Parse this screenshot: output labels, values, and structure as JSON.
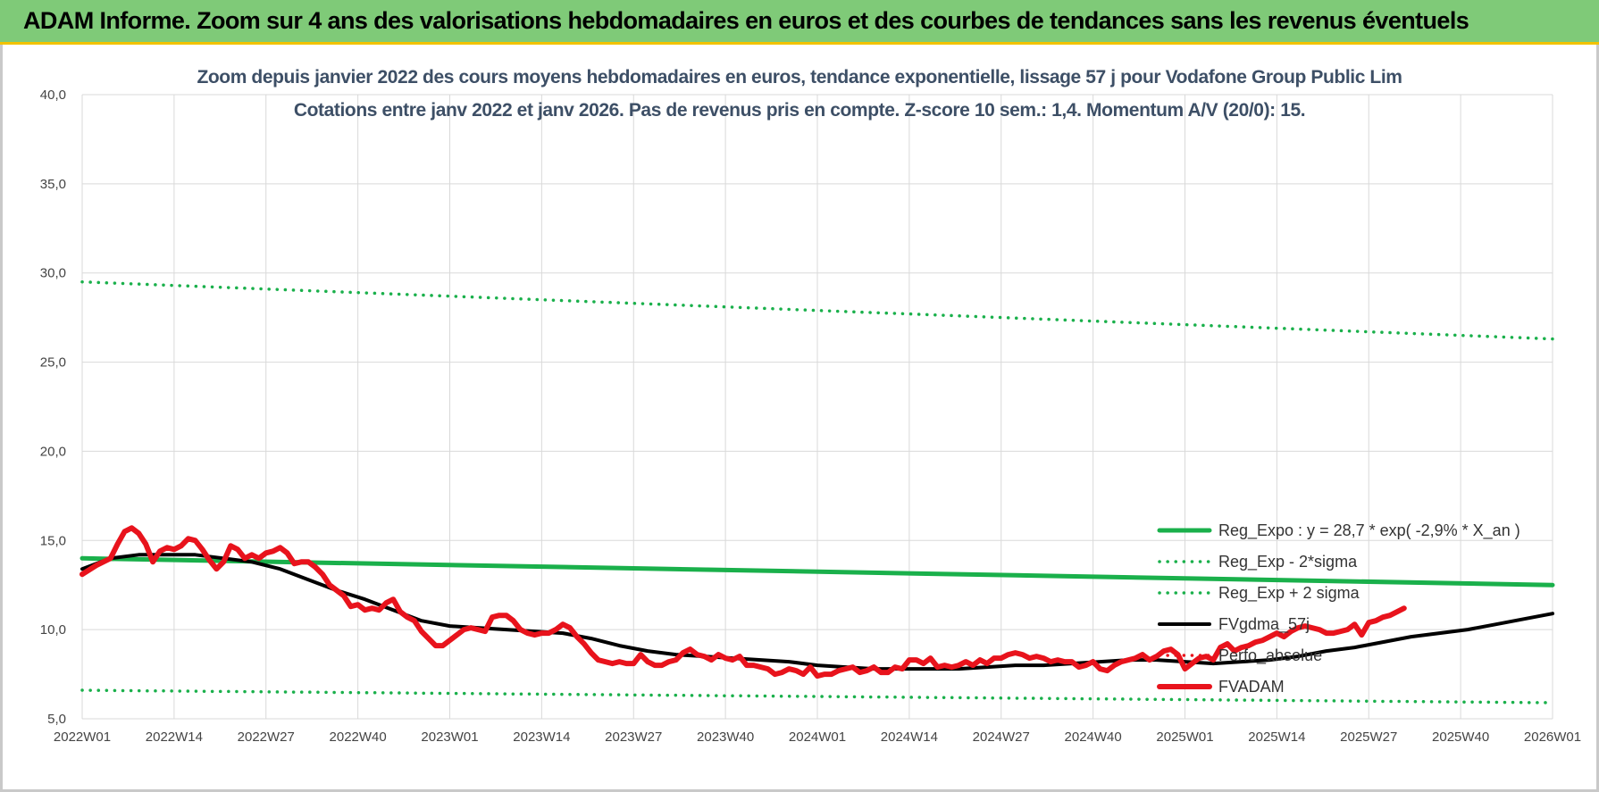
{
  "banner": {
    "title": "ADAM Informe. Zoom sur 4 ans des valorisations hebdomadaires en euros et des courbes de tendances sans les revenus éventuels",
    "color": "#7fca78"
  },
  "chart_data": {
    "type": "line",
    "title": "Zoom depuis janvier 2022 des cours moyens hebdomadaires en euros, tendance exponentielle, lissage 57 j pour Vodafone Group Public Lim",
    "subtitle": "Cotations entre janv 2022 et janv 2026. Pas de revenus pris en compte. Z-score 10 sem.: 1,4. Momentum A/V (20/0): 15.",
    "xlabel": "",
    "ylabel": "",
    "x_ticks": [
      "2022W01",
      "2022W14",
      "2022W27",
      "2022W40",
      "2023W01",
      "2023W14",
      "2023W27",
      "2023W40",
      "2024W01",
      "2024W14",
      "2024W27",
      "2024W40",
      "2025W01",
      "2025W14",
      "2025W27",
      "2025W40",
      "2026W01"
    ],
    "y_ticks": [
      "5,0",
      "10,0",
      "15,0",
      "20,0",
      "25,0",
      "30,0",
      "35,0",
      "40,0"
    ],
    "ylim": [
      5,
      40
    ],
    "grid": true,
    "legend_position": "bottom-right",
    "series": [
      {
        "name": "Reg_Expo : y = 28,7 * exp( -2,9% *  X_an )",
        "style": "solid",
        "color": "#1ab04b",
        "width": 5,
        "points": [
          [
            0,
            14.0
          ],
          [
            208,
            12.5
          ]
        ]
      },
      {
        "name": "Reg_Exp - 2*sigma",
        "style": "dotted",
        "color": "#1ab04b",
        "width": 3.5,
        "points": [
          [
            0,
            6.6
          ],
          [
            208,
            5.9
          ]
        ]
      },
      {
        "name": "Reg_Exp + 2 sigma",
        "style": "dotted",
        "color": "#1ab04b",
        "width": 3.5,
        "points": [
          [
            0,
            29.5
          ],
          [
            208,
            26.3
          ]
        ]
      },
      {
        "name": "FVgdma_57j",
        "style": "solid",
        "color": "#000000",
        "width": 4,
        "points": [
          [
            0,
            13.4
          ],
          [
            4,
            14.0
          ],
          [
            8,
            14.2
          ],
          [
            12,
            14.2
          ],
          [
            16,
            14.2
          ],
          [
            20,
            14.0
          ],
          [
            24,
            13.8
          ],
          [
            28,
            13.4
          ],
          [
            32,
            12.8
          ],
          [
            36,
            12.2
          ],
          [
            40,
            11.7
          ],
          [
            44,
            11.1
          ],
          [
            48,
            10.5
          ],
          [
            52,
            10.2
          ],
          [
            56,
            10.1
          ],
          [
            60,
            10.0
          ],
          [
            64,
            9.9
          ],
          [
            68,
            9.8
          ],
          [
            72,
            9.5
          ],
          [
            76,
            9.1
          ],
          [
            80,
            8.8
          ],
          [
            84,
            8.6
          ],
          [
            88,
            8.5
          ],
          [
            92,
            8.4
          ],
          [
            96,
            8.3
          ],
          [
            100,
            8.2
          ],
          [
            104,
            8.0
          ],
          [
            108,
            7.9
          ],
          [
            112,
            7.8
          ],
          [
            116,
            7.8
          ],
          [
            120,
            7.8
          ],
          [
            124,
            7.8
          ],
          [
            128,
            7.9
          ],
          [
            132,
            8.0
          ],
          [
            136,
            8.0
          ],
          [
            140,
            8.1
          ],
          [
            144,
            8.2
          ],
          [
            148,
            8.3
          ],
          [
            152,
            8.3
          ],
          [
            156,
            8.2
          ],
          [
            160,
            8.1
          ],
          [
            164,
            8.2
          ],
          [
            168,
            8.3
          ],
          [
            172,
            8.5
          ],
          [
            176,
            8.8
          ],
          [
            180,
            9.0
          ],
          [
            184,
            9.3
          ],
          [
            188,
            9.6
          ],
          [
            192,
            9.8
          ],
          [
            196,
            10.0
          ],
          [
            200,
            10.3
          ],
          [
            204,
            10.6
          ],
          [
            208,
            10.9
          ]
        ]
      },
      {
        "name": "Perfo_absolue",
        "style": "dotted",
        "color": "#e8131c",
        "width": 3.5,
        "points": []
      },
      {
        "name": "FVADAM",
        "style": "solid",
        "color": "#e8131c",
        "width": 6,
        "points": [
          [
            0,
            13.1
          ],
          [
            2,
            13.6
          ],
          [
            4,
            14.0
          ],
          [
            5,
            14.8
          ],
          [
            6,
            15.5
          ],
          [
            7,
            15.7
          ],
          [
            8,
            15.4
          ],
          [
            9,
            14.8
          ],
          [
            10,
            13.8
          ],
          [
            11,
            14.4
          ],
          [
            12,
            14.6
          ],
          [
            13,
            14.5
          ],
          [
            14,
            14.7
          ],
          [
            15,
            15.1
          ],
          [
            16,
            15.0
          ],
          [
            17,
            14.5
          ],
          [
            18,
            13.9
          ],
          [
            19,
            13.4
          ],
          [
            20,
            13.8
          ],
          [
            21,
            14.7
          ],
          [
            22,
            14.5
          ],
          [
            23,
            14.0
          ],
          [
            24,
            14.2
          ],
          [
            25,
            14.0
          ],
          [
            26,
            14.3
          ],
          [
            27,
            14.4
          ],
          [
            28,
            14.6
          ],
          [
            29,
            14.3
          ],
          [
            30,
            13.7
          ],
          [
            31,
            13.8
          ],
          [
            32,
            13.8
          ],
          [
            33,
            13.5
          ],
          [
            34,
            13.1
          ],
          [
            35,
            12.5
          ],
          [
            36,
            12.2
          ],
          [
            37,
            11.9
          ],
          [
            38,
            11.3
          ],
          [
            39,
            11.4
          ],
          [
            40,
            11.1
          ],
          [
            41,
            11.2
          ],
          [
            42,
            11.1
          ],
          [
            43,
            11.5
          ],
          [
            44,
            11.7
          ],
          [
            45,
            11.0
          ],
          [
            46,
            10.7
          ],
          [
            47,
            10.5
          ],
          [
            48,
            9.9
          ],
          [
            49,
            9.5
          ],
          [
            50,
            9.1
          ],
          [
            51,
            9.1
          ],
          [
            52,
            9.4
          ],
          [
            53,
            9.7
          ],
          [
            54,
            10.0
          ],
          [
            55,
            10.1
          ],
          [
            56,
            10.0
          ],
          [
            57,
            9.9
          ],
          [
            58,
            10.7
          ],
          [
            59,
            10.8
          ],
          [
            60,
            10.8
          ],
          [
            61,
            10.5
          ],
          [
            62,
            10.0
          ],
          [
            63,
            9.8
          ],
          [
            64,
            9.7
          ],
          [
            65,
            9.8
          ],
          [
            66,
            9.8
          ],
          [
            67,
            10.0
          ],
          [
            68,
            10.3
          ],
          [
            69,
            10.1
          ],
          [
            70,
            9.6
          ],
          [
            71,
            9.2
          ],
          [
            72,
            8.7
          ],
          [
            73,
            8.3
          ],
          [
            74,
            8.2
          ],
          [
            75,
            8.1
          ],
          [
            76,
            8.2
          ],
          [
            77,
            8.1
          ],
          [
            78,
            8.1
          ],
          [
            79,
            8.6
          ],
          [
            80,
            8.2
          ],
          [
            81,
            8.0
          ],
          [
            82,
            8.0
          ],
          [
            83,
            8.2
          ],
          [
            84,
            8.3
          ],
          [
            85,
            8.7
          ],
          [
            86,
            8.9
          ],
          [
            87,
            8.6
          ],
          [
            88,
            8.5
          ],
          [
            89,
            8.3
          ],
          [
            90,
            8.6
          ],
          [
            91,
            8.4
          ],
          [
            92,
            8.3
          ],
          [
            93,
            8.5
          ],
          [
            94,
            8.0
          ],
          [
            95,
            8.0
          ],
          [
            96,
            7.9
          ],
          [
            97,
            7.8
          ],
          [
            98,
            7.5
          ],
          [
            99,
            7.6
          ],
          [
            100,
            7.8
          ],
          [
            101,
            7.7
          ],
          [
            102,
            7.5
          ],
          [
            103,
            7.9
          ],
          [
            104,
            7.4
          ],
          [
            105,
            7.5
          ],
          [
            106,
            7.5
          ],
          [
            107,
            7.7
          ],
          [
            108,
            7.8
          ],
          [
            109,
            7.9
          ],
          [
            110,
            7.6
          ],
          [
            111,
            7.7
          ],
          [
            112,
            7.9
          ],
          [
            113,
            7.6
          ],
          [
            114,
            7.6
          ],
          [
            115,
            7.9
          ],
          [
            116,
            7.8
          ],
          [
            117,
            8.3
          ],
          [
            118,
            8.3
          ],
          [
            119,
            8.1
          ],
          [
            120,
            8.4
          ],
          [
            121,
            7.9
          ],
          [
            122,
            8.0
          ],
          [
            123,
            7.9
          ],
          [
            124,
            8.0
          ],
          [
            125,
            8.2
          ],
          [
            126,
            8.0
          ],
          [
            127,
            8.3
          ],
          [
            128,
            8.1
          ],
          [
            129,
            8.4
          ],
          [
            130,
            8.4
          ],
          [
            131,
            8.6
          ],
          [
            132,
            8.7
          ],
          [
            133,
            8.6
          ],
          [
            134,
            8.4
          ],
          [
            135,
            8.5
          ],
          [
            136,
            8.4
          ],
          [
            137,
            8.2
          ],
          [
            138,
            8.3
          ],
          [
            139,
            8.2
          ],
          [
            140,
            8.2
          ],
          [
            141,
            7.9
          ],
          [
            142,
            8.0
          ],
          [
            143,
            8.2
          ],
          [
            144,
            7.8
          ],
          [
            145,
            7.7
          ],
          [
            146,
            8.0
          ],
          [
            147,
            8.2
          ],
          [
            148,
            8.3
          ],
          [
            149,
            8.4
          ],
          [
            150,
            8.6
          ],
          [
            151,
            8.3
          ],
          [
            152,
            8.5
          ],
          [
            153,
            8.8
          ],
          [
            154,
            8.9
          ],
          [
            155,
            8.6
          ],
          [
            156,
            7.8
          ],
          [
            157,
            8.1
          ],
          [
            158,
            8.4
          ],
          [
            159,
            8.5
          ],
          [
            160,
            8.3
          ],
          [
            161,
            9.0
          ],
          [
            162,
            9.2
          ],
          [
            163,
            8.8
          ],
          [
            164,
            9.0
          ],
          [
            165,
            9.1
          ],
          [
            166,
            9.3
          ],
          [
            167,
            9.4
          ],
          [
            168,
            9.6
          ],
          [
            169,
            9.8
          ],
          [
            170,
            9.6
          ],
          [
            171,
            9.9
          ],
          [
            172,
            10.1
          ],
          [
            173,
            10.2
          ],
          [
            174,
            10.1
          ],
          [
            175,
            10.0
          ],
          [
            176,
            9.8
          ],
          [
            177,
            9.8
          ],
          [
            178,
            9.9
          ],
          [
            179,
            10.0
          ],
          [
            180,
            10.3
          ],
          [
            181,
            9.7
          ],
          [
            182,
            10.4
          ],
          [
            183,
            10.5
          ],
          [
            184,
            10.7
          ],
          [
            185,
            10.8
          ],
          [
            186,
            11.0
          ],
          [
            187,
            11.2
          ]
        ]
      }
    ]
  }
}
